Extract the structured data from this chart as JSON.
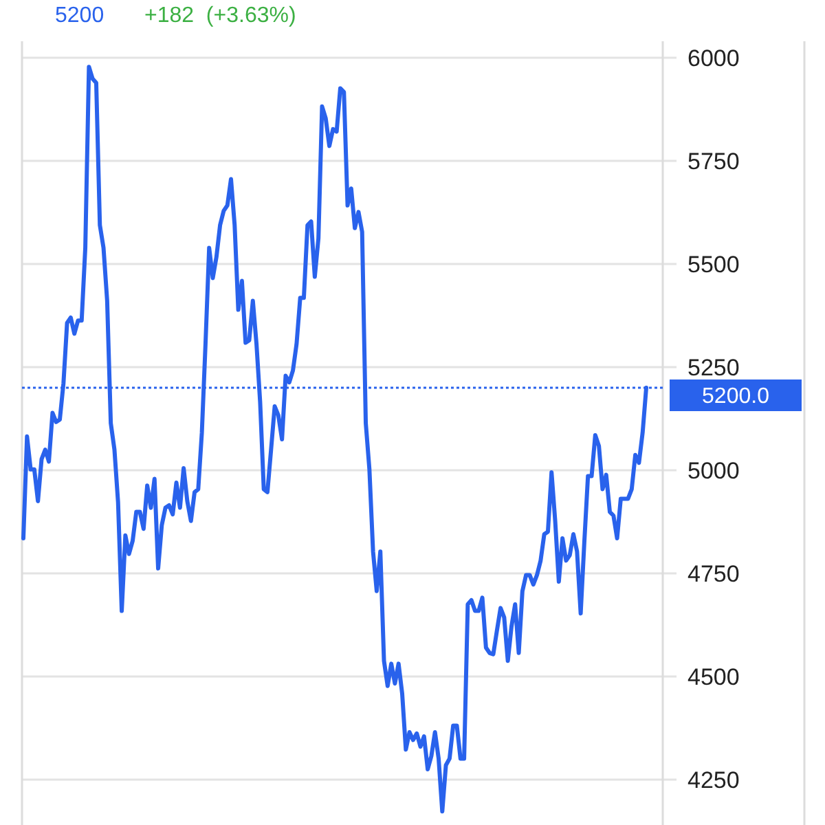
{
  "chart_data": {
    "type": "line",
    "annotations": [
      "5200",
      "+182  (+3.63%)"
    ],
    "categories": [
      null,
      null,
      null,
      null,
      null,
      null,
      null,
      null,
      null,
      null,
      null,
      null,
      null,
      null,
      null,
      null,
      null,
      null,
      null,
      null,
      null,
      null,
      null,
      null,
      null,
      null,
      null,
      null,
      null,
      null,
      null,
      null,
      null,
      null,
      null,
      null,
      null,
      null,
      null,
      null,
      null,
      null,
      null,
      null,
      null,
      null,
      null,
      null,
      null,
      null,
      null,
      null,
      null,
      null,
      null,
      null,
      null,
      null,
      null,
      null,
      null,
      null,
      null,
      null,
      null,
      null,
      null,
      null,
      null,
      null,
      null,
      null,
      null,
      null,
      null,
      null,
      null,
      null,
      null,
      null,
      null,
      null,
      null,
      null,
      null,
      null,
      null,
      null,
      null,
      null,
      null,
      null,
      null,
      null,
      null,
      null,
      null,
      null,
      null,
      null,
      null,
      null,
      null,
      null,
      null,
      null,
      null,
      null,
      null,
      null,
      null,
      null,
      null,
      null,
      null,
      null,
      null,
      null,
      null,
      null,
      null,
      null,
      null,
      null,
      null,
      null,
      null,
      null,
      null,
      null,
      null,
      null,
      null,
      null,
      null,
      null,
      null,
      null,
      null,
      null,
      null,
      null,
      null,
      null,
      null,
      null,
      null,
      null,
      null,
      null,
      null,
      null,
      null,
      null,
      null,
      null,
      null,
      null,
      null,
      null,
      null,
      null,
      null,
      null,
      null,
      null,
      null,
      null,
      null,
      null,
      null,
      null
    ],
    "series": [
      {
        "color": "#2962ec",
        "values": [
          4835,
          5082,
          5002,
          5002,
          4925,
          5027,
          5050,
          5021,
          5139,
          5117,
          5123,
          5210,
          5357,
          5370,
          5331,
          5363,
          5363,
          5539,
          5978,
          5949,
          5939,
          5594,
          5539,
          5411,
          5114,
          5050,
          4922,
          4659,
          4842,
          4797,
          4829,
          4899,
          4899,
          4858,
          4963,
          4909,
          4979,
          4762,
          4867,
          4909,
          4915,
          4893,
          4970,
          4909,
          5005,
          4925,
          4877,
          4947,
          4954,
          5091,
          5306,
          5539,
          5466,
          5517,
          5594,
          5629,
          5642,
          5706,
          5594,
          5389,
          5459,
          5309,
          5315,
          5411,
          5306,
          5165,
          4954,
          4947,
          5050,
          5155,
          5133,
          5075,
          5229,
          5213,
          5242,
          5306,
          5418,
          5418,
          5594,
          5603,
          5469,
          5562,
          5882,
          5853,
          5786,
          5827,
          5821,
          5926,
          5917,
          5642,
          5683,
          5587,
          5626,
          5578,
          5114,
          5002,
          4803,
          4707,
          4803,
          4538,
          4477,
          4531,
          4483,
          4531,
          4458,
          4323,
          4365,
          4346,
          4362,
          4330,
          4355,
          4275,
          4307,
          4365,
          4301,
          4173,
          4285,
          4301,
          4381,
          4381,
          4301,
          4301,
          4675,
          4685,
          4659,
          4659,
          4691,
          4570,
          4557,
          4554,
          4611,
          4666,
          4643,
          4538,
          4621,
          4675,
          4557,
          4707,
          4746,
          4746,
          4723,
          4746,
          4781,
          4845,
          4851,
          4995,
          4877,
          4730,
          4835,
          4781,
          4794,
          4845,
          4803,
          4653,
          4826,
          4986,
          4986,
          5085,
          5059,
          4954,
          4989,
          4899,
          4890,
          4835,
          4931,
          4931,
          4931,
          4954,
          5037,
          5018,
          5091,
          5200
        ]
      }
    ],
    "ylim": [
      4140,
      6040
    ],
    "yticks": [
      4250,
      4500,
      4750,
      5000,
      5250,
      5500,
      5750,
      6000
    ],
    "grid": "y",
    "ref_lines": [
      {
        "axis": "y",
        "value": 5200,
        "label": "5200.0",
        "color": "#2962ec",
        "line_style": "dotted"
      }
    ]
  }
}
